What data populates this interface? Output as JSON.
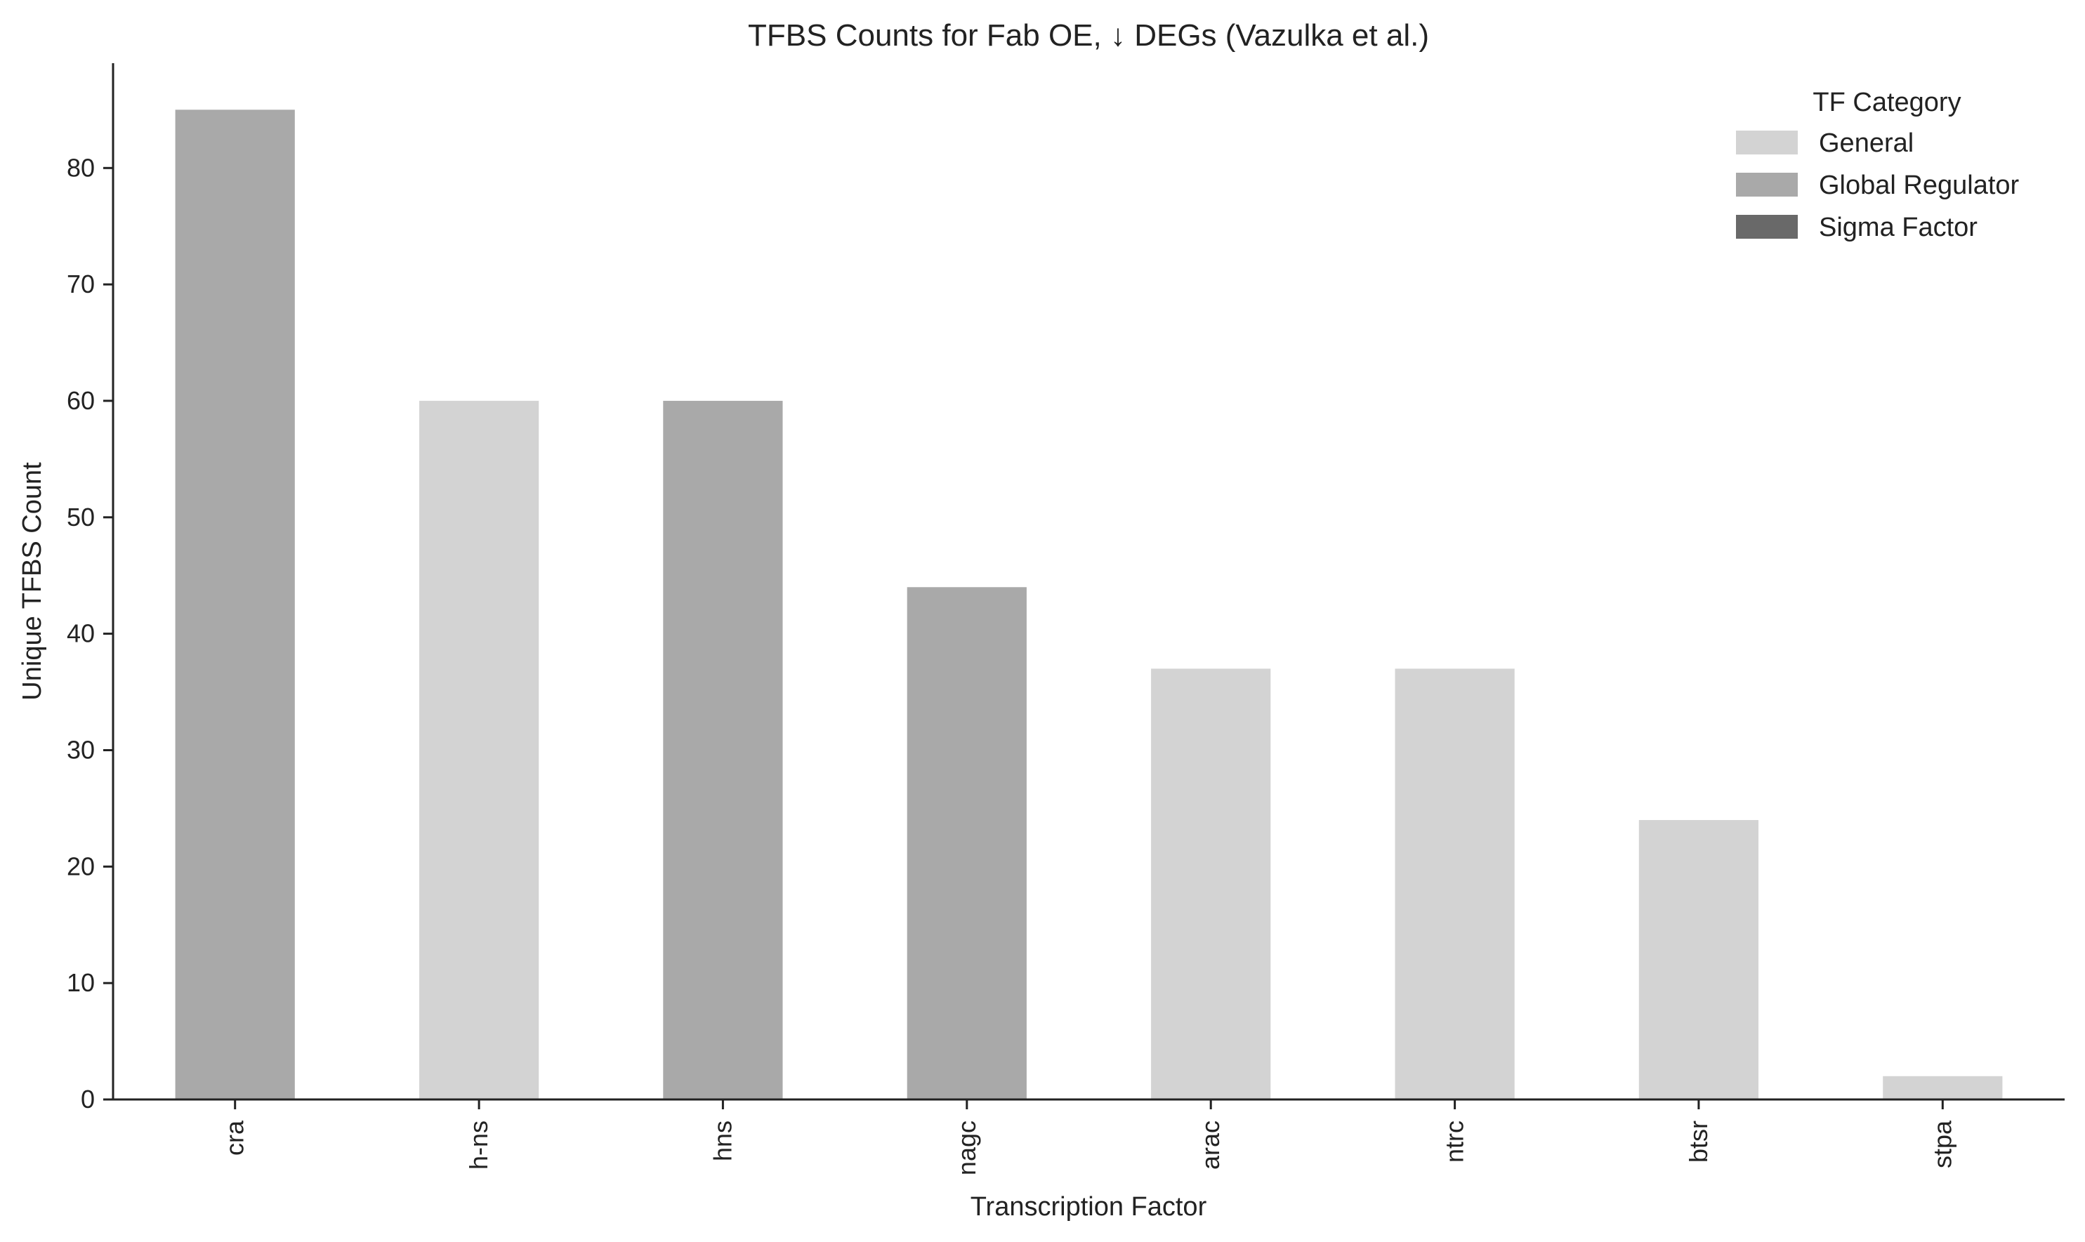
{
  "chart_data": {
    "type": "bar",
    "title": "TFBS Counts for Fab OE, ↓ DEGs (Vazulka et al.)",
    "xlabel": "Transcription Factor",
    "ylabel": "Unique TFBS Count",
    "categories": [
      "cra",
      "h-ns",
      "hns",
      "nagc",
      "arac",
      "ntrc",
      "btsr",
      "stpa"
    ],
    "values": [
      85,
      60,
      60,
      44,
      37,
      37,
      24,
      2
    ],
    "bar_category": [
      "Global Regulator",
      "General",
      "Global Regulator",
      "Global Regulator",
      "General",
      "General",
      "General",
      "General"
    ],
    "ylim": [
      0,
      89
    ],
    "yticks": [
      0,
      10,
      20,
      30,
      40,
      50,
      60,
      70,
      80
    ],
    "grid": false,
    "legend": {
      "title": "TF Category",
      "position": "top-right",
      "entries": [
        {
          "label": "General",
          "color": "#d3d3d3"
        },
        {
          "label": "Global Regulator",
          "color": "#a9a9a9"
        },
        {
          "label": "Sigma Factor",
          "color": "#696969"
        }
      ]
    }
  }
}
